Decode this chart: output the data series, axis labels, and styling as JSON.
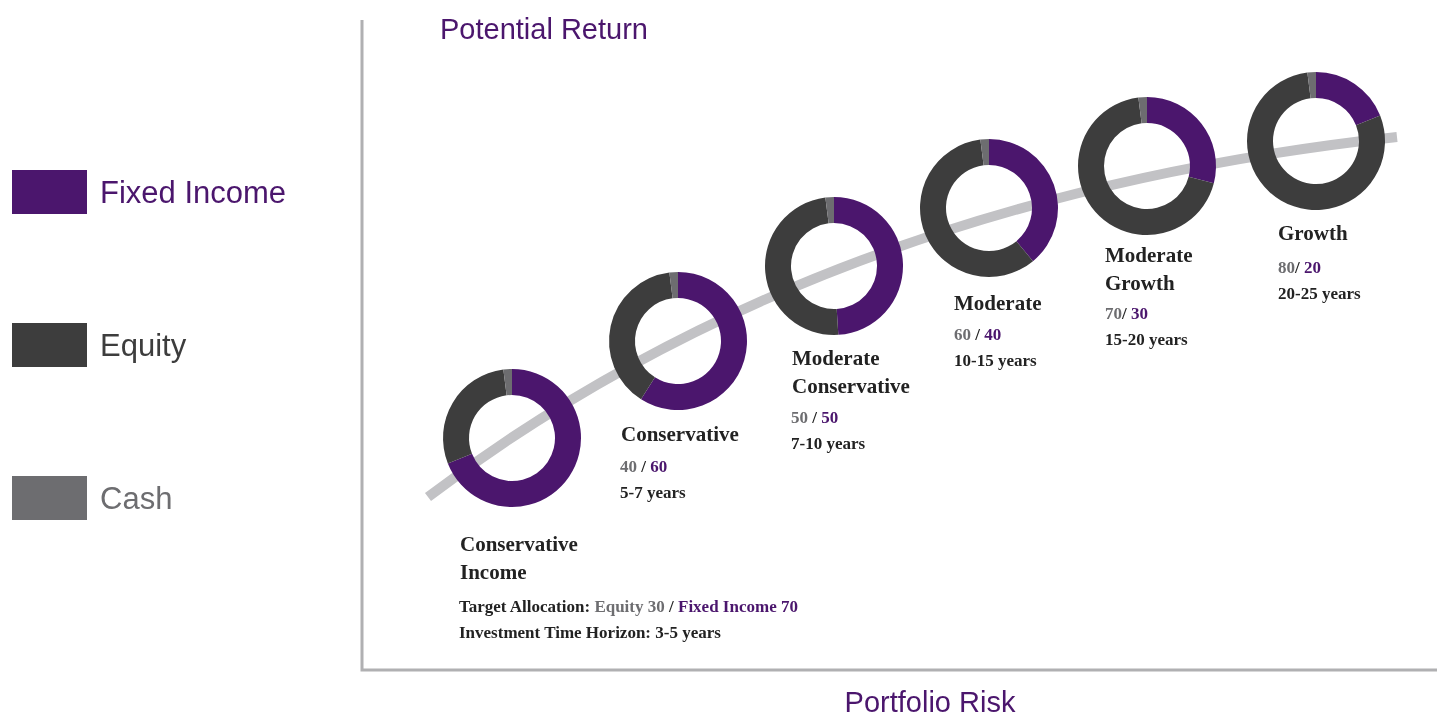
{
  "chart_data": [
    {
      "type": "donut",
      "title": "Conservative Income",
      "categories": [
        "Fixed Income",
        "Equity",
        "Cash"
      ],
      "values": [
        69,
        29,
        2
      ],
      "colors": [
        "#4b166d",
        "#3d3d3d",
        "#6d6d70"
      ],
      "legend": "left",
      "ylabel": "Potential Return",
      "xlabel": "Portfolio Risk",
      "annotations": [
        "Target Allocation: Equity 30 / Fixed Income 70",
        "Investment Time Horizon: 3-5 years"
      ]
    },
    {
      "type": "donut",
      "title": "Conservative",
      "categories": [
        null,
        null,
        null
      ],
      "values": [
        59,
        39,
        2
      ],
      "colors": [
        "#4b166d",
        "#3d3d3d",
        "#6d6d70"
      ],
      "annotations": [
        "40 / 60",
        "5-7 years"
      ]
    },
    {
      "type": "donut",
      "title": "Moderate Conservative",
      "categories": [
        null,
        null,
        null
      ],
      "values": [
        49,
        49,
        2
      ],
      "colors": [
        "#4b166d",
        "#3d3d3d",
        "#6d6d70"
      ],
      "annotations": [
        "50 / 50",
        "7-10 years"
      ]
    },
    {
      "type": "donut",
      "title": "Moderate",
      "categories": [
        null,
        null,
        null
      ],
      "values": [
        39,
        59,
        2
      ],
      "colors": [
        "#4b166d",
        "#3d3d3d",
        "#6d6d70"
      ],
      "annotations": [
        "60 / 40",
        "10-15 years"
      ]
    },
    {
      "type": "donut",
      "title": "Moderate Growth",
      "categories": [
        null,
        null,
        null
      ],
      "values": [
        29,
        69,
        2
      ],
      "colors": [
        "#4b166d",
        "#3d3d3d",
        "#6d6d70"
      ],
      "annotations": [
        "70/ 30",
        "15-20 years"
      ]
    },
    {
      "type": "donut",
      "title": "Growth",
      "categories": [
        null,
        null,
        null
      ],
      "values": [
        19,
        79,
        2
      ],
      "colors": [
        "#4b166d",
        "#3d3d3d",
        "#6d6d70"
      ],
      "annotations": [
        "80/ 20",
        "20-25 years"
      ]
    }
  ]
}
